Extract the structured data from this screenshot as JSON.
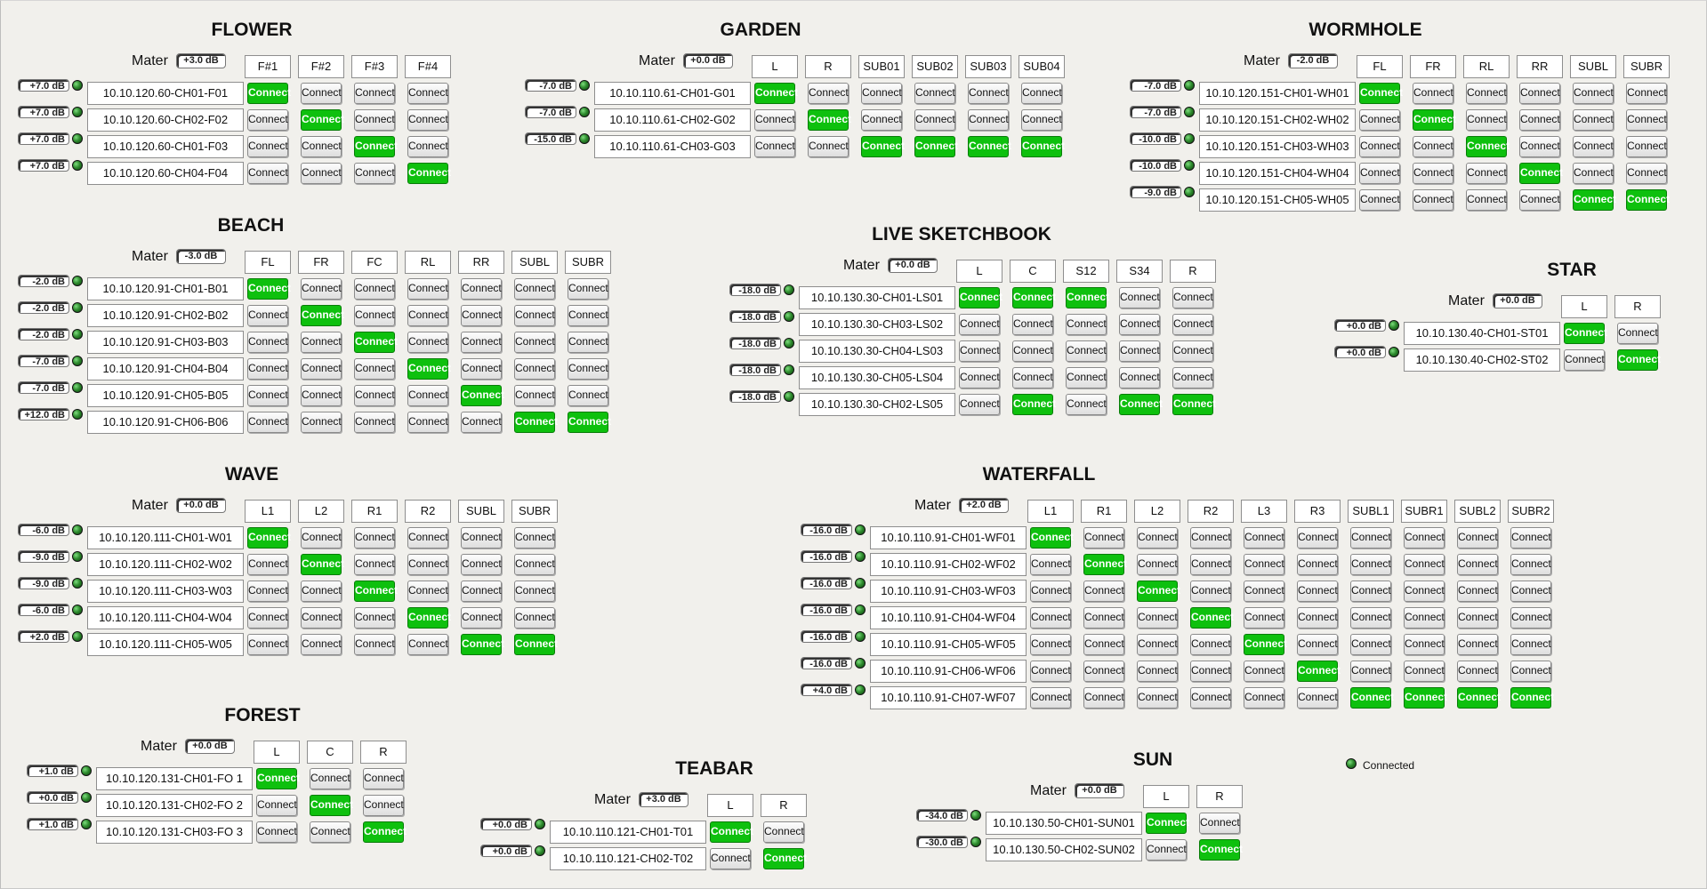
{
  "mater_label": "Mater",
  "connect_label": "Connect",
  "legend": {
    "label": "Connected"
  },
  "panels": [
    {
      "title": "FLOWER",
      "master": "+3.0 dB",
      "columns": [
        "F#1",
        "F#2",
        "F#3",
        "F#4"
      ],
      "rows": [
        {
          "gain": "+7.0 dB",
          "address": "10.10.120.60-CH01-F01",
          "active": [
            0
          ]
        },
        {
          "gain": "+7.0 dB",
          "address": "10.10.120.60-CH02-F02",
          "active": [
            1
          ]
        },
        {
          "gain": "+7.0 dB",
          "address": "10.10.120.60-CH01-F03",
          "active": [
            2
          ]
        },
        {
          "gain": "+7.0 dB",
          "address": "10.10.120.60-CH04-F04",
          "active": [
            3
          ]
        }
      ]
    },
    {
      "title": "GARDEN",
      "master": "+0.0 dB",
      "columns": [
        "L",
        "R",
        "SUB01",
        "SUB02",
        "SUB03",
        "SUB04"
      ],
      "rows": [
        {
          "gain": "-7.0 dB",
          "address": "10.10.110.61-CH01-G01",
          "active": [
            0
          ]
        },
        {
          "gain": "-7.0 dB",
          "address": "10.10.110.61-CH02-G02",
          "active": [
            1
          ]
        },
        {
          "gain": "-15.0 dB",
          "address": "10.10.110.61-CH03-G03",
          "active": [
            2,
            3,
            4,
            5
          ]
        }
      ]
    },
    {
      "title": "WORMHOLE",
      "master": "-2.0 dB",
      "columns": [
        "FL",
        "FR",
        "RL",
        "RR",
        "SUBL",
        "SUBR"
      ],
      "rows": [
        {
          "gain": "-7.0 dB",
          "address": "10.10.120.151-CH01-WH01",
          "active": [
            0
          ]
        },
        {
          "gain": "-7.0 dB",
          "address": "10.10.120.151-CH02-WH02",
          "active": [
            1
          ]
        },
        {
          "gain": "-10.0 dB",
          "address": "10.10.120.151-CH03-WH03",
          "active": [
            2
          ]
        },
        {
          "gain": "-10.0 dB",
          "address": "10.10.120.151-CH04-WH04",
          "active": [
            3
          ]
        },
        {
          "gain": "-9.0 dB",
          "address": "10.10.120.151-CH05-WH05",
          "active": [
            4,
            5
          ]
        }
      ]
    },
    {
      "title": "BEACH",
      "master": "-3.0 dB",
      "columns": [
        "FL",
        "FR",
        "FC",
        "RL",
        "RR",
        "SUBL",
        "SUBR"
      ],
      "rows": [
        {
          "gain": "-2.0 dB",
          "address": "10.10.120.91-CH01-B01",
          "active": [
            0
          ]
        },
        {
          "gain": "-2.0 dB",
          "address": "10.10.120.91-CH02-B02",
          "active": [
            1
          ]
        },
        {
          "gain": "-2.0 dB",
          "address": "10.10.120.91-CH03-B03",
          "active": [
            2
          ]
        },
        {
          "gain": "-7.0 dB",
          "address": "10.10.120.91-CH04-B04",
          "active": [
            3
          ]
        },
        {
          "gain": "-7.0 dB",
          "address": "10.10.120.91-CH05-B05",
          "active": [
            4
          ]
        },
        {
          "gain": "+12.0 dB",
          "address": "10.10.120.91-CH06-B06",
          "active": [
            5,
            6
          ]
        }
      ]
    },
    {
      "title": "LIVE SKETCHBOOK",
      "master": "+0.0 dB",
      "columns": [
        "L",
        "C",
        "S12",
        "S34",
        "R"
      ],
      "rows": [
        {
          "gain": "-18.0 dB",
          "address": "10.10.130.30-CH01-LS01",
          "active": [
            0,
            1,
            2
          ]
        },
        {
          "gain": "-18.0 dB",
          "address": "10.10.130.30-CH03-LS02",
          "active": []
        },
        {
          "gain": "-18.0 dB",
          "address": "10.10.130.30-CH04-LS03",
          "active": []
        },
        {
          "gain": "-18.0 dB",
          "address": "10.10.130.30-CH05-LS04",
          "active": []
        },
        {
          "gain": "-18.0 dB",
          "address": "10.10.130.30-CH02-LS05",
          "active": [
            1,
            3,
            4
          ]
        }
      ]
    },
    {
      "title": "STAR",
      "master": "+0.0 dB",
      "columns": [
        "L",
        "R"
      ],
      "rows": [
        {
          "gain": "+0.0 dB",
          "address": "10.10.130.40-CH01-ST01",
          "active": [
            0
          ]
        },
        {
          "gain": "+0.0 dB",
          "address": "10.10.130.40-CH02-ST02",
          "active": [
            1
          ]
        }
      ]
    },
    {
      "title": "WAVE",
      "master": "+0.0 dB",
      "columns": [
        "L1",
        "L2",
        "R1",
        "R2",
        "SUBL",
        "SUBR"
      ],
      "rows": [
        {
          "gain": "-6.0 dB",
          "address": "10.10.120.111-CH01-W01",
          "active": [
            0
          ]
        },
        {
          "gain": "-9.0 dB",
          "address": "10.10.120.111-CH02-W02",
          "active": [
            1
          ]
        },
        {
          "gain": "-9.0 dB",
          "address": "10.10.120.111-CH03-W03",
          "active": [
            2
          ]
        },
        {
          "gain": "-6.0 dB",
          "address": "10.10.120.111-CH04-W04",
          "active": [
            3
          ]
        },
        {
          "gain": "+2.0 dB",
          "address": "10.10.120.111-CH05-W05",
          "active": [
            4,
            5
          ]
        }
      ]
    },
    {
      "title": "WATERFALL",
      "master": "+2.0 dB",
      "columns": [
        "L1",
        "R1",
        "L2",
        "R2",
        "L3",
        "R3",
        "SUBL1",
        "SUBR1",
        "SUBL2",
        "SUBR2"
      ],
      "rows": [
        {
          "gain": "-16.0 dB",
          "address": "10.10.110.91-CH01-WF01",
          "active": [
            0
          ]
        },
        {
          "gain": "-16.0 dB",
          "address": "10.10.110.91-CH02-WF02",
          "active": [
            1
          ]
        },
        {
          "gain": "-16.0 dB",
          "address": "10.10.110.91-CH03-WF03",
          "active": [
            2
          ]
        },
        {
          "gain": "-16.0 dB",
          "address": "10.10.110.91-CH04-WF04",
          "active": [
            3
          ]
        },
        {
          "gain": "-16.0 dB",
          "address": "10.10.110.91-CH05-WF05",
          "active": [
            4
          ]
        },
        {
          "gain": "-16.0 dB",
          "address": "10.10.110.91-CH06-WF06",
          "active": [
            5
          ]
        },
        {
          "gain": "+4.0 dB",
          "address": "10.10.110.91-CH07-WF07",
          "active": [
            6,
            7,
            8,
            9
          ]
        }
      ]
    },
    {
      "title": "FOREST",
      "master": "+0.0 dB",
      "columns": [
        "L",
        "C",
        "R"
      ],
      "rows": [
        {
          "gain": "+1.0 dB",
          "address": "10.10.120.131-CH01-FO 1",
          "active": [
            0
          ]
        },
        {
          "gain": "+0.0 dB",
          "address": "10.10.120.131-CH02-FO 2",
          "active": [
            1
          ]
        },
        {
          "gain": "+1.0 dB",
          "address": "10.10.120.131-CH03-FO 3",
          "active": [
            2
          ]
        }
      ]
    },
    {
      "title": "TEABAR",
      "master": "+3.0 dB",
      "columns": [
        "L",
        "R"
      ],
      "rows": [
        {
          "gain": "+0.0 dB",
          "address": "10.10.110.121-CH01-T01",
          "active": [
            0
          ]
        },
        {
          "gain": "+0.0 dB",
          "address": "10.10.110.121-CH02-T02",
          "active": [
            1
          ]
        }
      ]
    },
    {
      "title": "SUN",
      "master": "+0.0 dB",
      "columns": [
        "L",
        "R"
      ],
      "rows": [
        {
          "gain": "-34.0 dB",
          "address": "10.10.130.50-CH01-SUN01",
          "active": [
            0
          ]
        },
        {
          "gain": "-30.0 dB",
          "address": "10.10.130.50-CH02-SUN02",
          "active": [
            1
          ]
        }
      ]
    }
  ]
}
